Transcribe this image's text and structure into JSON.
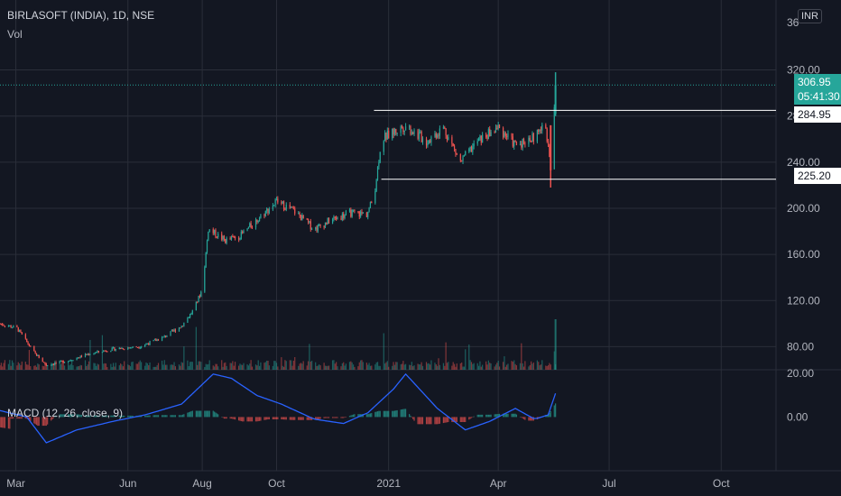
{
  "header": {
    "title": "BIRLASOFT (INDIA), 1D, NSE",
    "volume_label": "Vol",
    "macd_label": "MACD (12, 26, close, 9)"
  },
  "currency": "INR",
  "price_axis": {
    "top_partial_label": "36",
    "labels": [
      "320.00",
      "280.00",
      "240.00",
      "200.00",
      "160.00",
      "120.00",
      "80.00",
      "20.00"
    ],
    "macd_labels": [
      "0.00"
    ]
  },
  "time_axis": {
    "labels": [
      "Mar",
      "Jun",
      "Aug",
      "Oct",
      "2021",
      "Apr",
      "Jul",
      "Oct"
    ]
  },
  "current_price": {
    "value": "306.95",
    "countdown": "05:41:30",
    "color": "#26a69a"
  },
  "levels": [
    {
      "label": "284.95",
      "value": 284.95
    },
    {
      "label": "225.20",
      "value": 225.2
    }
  ],
  "colors": {
    "background": "#131722",
    "up": "#26a69a",
    "down": "#ef5350",
    "macd_line": "#2962ff",
    "grid": "#2a2e39"
  },
  "chart_data": {
    "type": "candlestick",
    "title": "BIRLASOFT (INDIA), 1D, NSE",
    "ylim": [
      60,
      365
    ],
    "x_range": [
      "2020-02-17",
      "2021-11-15"
    ],
    "x_ticks": [
      {
        "label": "Mar",
        "date": "2020-03-01"
      },
      {
        "label": "Jun",
        "date": "2020-06-01"
      },
      {
        "label": "Aug",
        "date": "2020-08-01"
      },
      {
        "label": "Oct",
        "date": "2020-10-01"
      },
      {
        "label": "2021",
        "date": "2021-01-01"
      },
      {
        "label": "Apr",
        "date": "2021-04-01"
      },
      {
        "label": "Jul",
        "date": "2021-07-01"
      },
      {
        "label": "Oct",
        "date": "2021-10-01"
      }
    ],
    "close_series": [
      [
        "2020-02-17",
        100
      ],
      [
        "2020-03-02",
        96
      ],
      [
        "2020-03-16",
        75
      ],
      [
        "2020-03-26",
        64
      ],
      [
        "2020-04-13",
        68
      ],
      [
        "2020-05-01",
        74
      ],
      [
        "2020-05-20",
        78
      ],
      [
        "2020-06-10",
        80
      ],
      [
        "2020-06-30",
        88
      ],
      [
        "2020-07-15",
        98
      ],
      [
        "2020-07-25",
        112
      ],
      [
        "2020-08-01",
        130
      ],
      [
        "2020-08-06",
        182
      ],
      [
        "2020-08-20",
        172
      ],
      [
        "2020-09-01",
        176
      ],
      [
        "2020-09-15",
        190
      ],
      [
        "2020-10-01",
        206
      ],
      [
        "2020-10-15",
        198
      ],
      [
        "2020-11-01",
        182
      ],
      [
        "2020-11-15",
        190
      ],
      [
        "2020-12-01",
        196
      ],
      [
        "2020-12-14",
        195
      ],
      [
        "2020-12-20",
        210
      ],
      [
        "2020-12-26",
        260
      ],
      [
        "2021-01-05",
        266
      ],
      [
        "2021-01-15",
        272
      ],
      [
        "2021-02-01",
        258
      ],
      [
        "2021-02-15",
        270
      ],
      [
        "2021-03-01",
        240
      ],
      [
        "2021-03-15",
        258
      ],
      [
        "2021-04-01",
        270
      ],
      [
        "2021-04-15",
        255
      ],
      [
        "2021-05-01",
        262
      ],
      [
        "2021-05-10",
        272
      ],
      [
        "2021-05-14",
        233
      ],
      [
        "2021-05-18",
        306.95
      ]
    ],
    "levels": [
      284.95,
      225.2
    ],
    "last_price": 306.95,
    "macd": {
      "label": "MACD (12, 26, close, 9)",
      "ylim": [
        -25,
        22
      ],
      "zero_label": "0.00",
      "top_label": "20.00",
      "line": [
        [
          "2020-02-17",
          3
        ],
        [
          "2020-03-10",
          0
        ],
        [
          "2020-03-26",
          -12
        ],
        [
          "2020-04-20",
          -6
        ],
        [
          "2020-05-20",
          -2
        ],
        [
          "2020-06-15",
          1
        ],
        [
          "2020-07-15",
          6
        ],
        [
          "2020-08-10",
          20
        ],
        [
          "2020-08-25",
          18
        ],
        [
          "2020-09-15",
          10
        ],
        [
          "2020-10-05",
          6
        ],
        [
          "2020-11-01",
          -1
        ],
        [
          "2020-11-25",
          -3
        ],
        [
          "2020-12-15",
          2
        ],
        [
          "2021-01-05",
          13
        ],
        [
          "2021-01-15",
          20
        ],
        [
          "2021-02-10",
          4
        ],
        [
          "2021-03-05",
          -6
        ],
        [
          "2021-03-25",
          -2
        ],
        [
          "2021-04-15",
          4
        ],
        [
          "2021-05-01",
          -1
        ],
        [
          "2021-05-12",
          1
        ],
        [
          "2021-05-18",
          11
        ]
      ]
    }
  }
}
